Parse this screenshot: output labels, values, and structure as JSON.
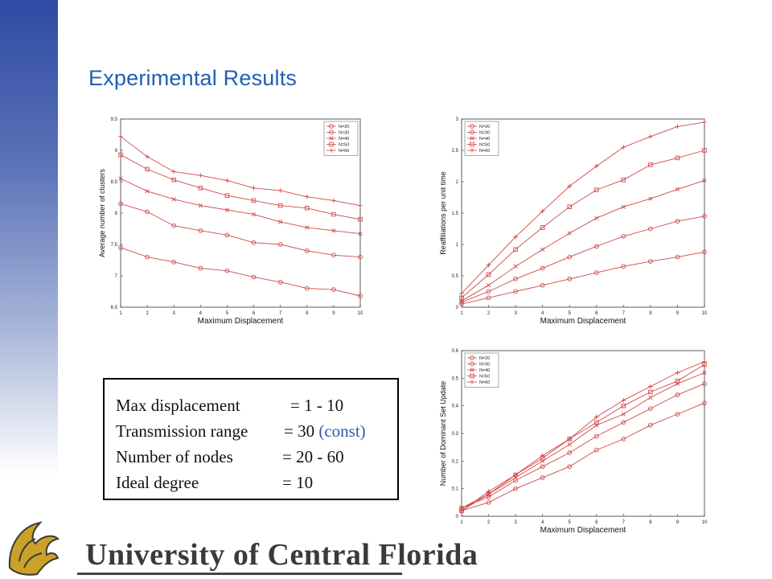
{
  "slide": {
    "title": "Experimental Results"
  },
  "params": [
    {
      "key": "Max displacement",
      "value": "= 1 - 10",
      "note": ""
    },
    {
      "key": "Transmission range",
      "value": "= 30",
      "note": "(const)"
    },
    {
      "key": "Number of nodes",
      "value": "= 20 - 60",
      "note": ""
    },
    {
      "key": "Ideal degree",
      "value": "= 10",
      "note": ""
    }
  ],
  "logo": {
    "text": "University of Central Florida"
  },
  "colors": {
    "series": "#d04848",
    "title": "#1f5fb3"
  },
  "chart_data": [
    {
      "type": "line",
      "xlabel": "Maximum Displacement",
      "ylabel": "Average number of clusters",
      "x": [
        1,
        2,
        3,
        4,
        5,
        6,
        7,
        8,
        9,
        10
      ],
      "xlim": [
        1,
        10
      ],
      "ylim": [
        6.5,
        9.5
      ],
      "yticks": [
        6.5,
        7,
        7.5,
        8,
        8.5,
        9,
        9.5
      ],
      "xticks": [
        1,
        2,
        3,
        4,
        5,
        6,
        7,
        8,
        9,
        10
      ],
      "legend": "top-right",
      "grid": false,
      "series": [
        {
          "name": "N=20",
          "marker": "circle",
          "values": [
            7.45,
            7.3,
            7.22,
            7.12,
            7.08,
            6.98,
            6.9,
            6.8,
            6.78,
            6.68
          ]
        },
        {
          "name": "N=30",
          "marker": "circle",
          "values": [
            8.15,
            8.02,
            7.8,
            7.72,
            7.65,
            7.53,
            7.5,
            7.4,
            7.33,
            7.3
          ]
        },
        {
          "name": "N=40",
          "marker": "x",
          "values": [
            8.55,
            8.35,
            8.22,
            8.12,
            8.05,
            7.98,
            7.86,
            7.77,
            7.72,
            7.67
          ]
        },
        {
          "name": "N=50",
          "marker": "square",
          "values": [
            8.93,
            8.7,
            8.53,
            8.4,
            8.28,
            8.2,
            8.12,
            8.08,
            7.98,
            7.9
          ]
        },
        {
          "name": "N=60",
          "marker": "plus",
          "values": [
            9.22,
            8.9,
            8.66,
            8.6,
            8.52,
            8.4,
            8.36,
            8.26,
            8.2,
            8.12
          ]
        }
      ]
    },
    {
      "type": "line",
      "xlabel": "Maximum Displacement",
      "ylabel": "Reaffiliations per unit time",
      "x": [
        1,
        2,
        3,
        4,
        5,
        6,
        7,
        8,
        9,
        10
      ],
      "xlim": [
        1,
        10
      ],
      "ylim": [
        0,
        3
      ],
      "yticks": [
        0,
        0.5,
        1,
        1.5,
        2,
        2.5,
        3
      ],
      "xticks": [
        1,
        2,
        3,
        4,
        5,
        6,
        7,
        8,
        9,
        10
      ],
      "legend": "top-left",
      "grid": false,
      "series": [
        {
          "name": "N=20",
          "marker": "circle",
          "values": [
            0.05,
            0.15,
            0.25,
            0.35,
            0.45,
            0.55,
            0.65,
            0.73,
            0.8,
            0.88
          ]
        },
        {
          "name": "N=30",
          "marker": "circle",
          "values": [
            0.08,
            0.25,
            0.45,
            0.62,
            0.8,
            0.97,
            1.13,
            1.25,
            1.37,
            1.45
          ]
        },
        {
          "name": "N=40",
          "marker": "x",
          "values": [
            0.1,
            0.35,
            0.65,
            0.92,
            1.18,
            1.42,
            1.6,
            1.73,
            1.88,
            2.02
          ]
        },
        {
          "name": "N=50",
          "marker": "square",
          "values": [
            0.15,
            0.52,
            0.92,
            1.27,
            1.6,
            1.87,
            2.03,
            2.27,
            2.38,
            2.5
          ]
        },
        {
          "name": "N=60",
          "marker": "plus",
          "values": [
            0.22,
            0.67,
            1.12,
            1.53,
            1.93,
            2.25,
            2.55,
            2.72,
            2.88,
            2.95
          ]
        }
      ]
    },
    {
      "type": "line",
      "xlabel": "Maximum Displacement",
      "ylabel": "Number of Dominant Set Update",
      "x": [
        1,
        2,
        3,
        4,
        5,
        6,
        7,
        8,
        9,
        10
      ],
      "xlim": [
        1,
        10
      ],
      "ylim": [
        0,
        0.6
      ],
      "yticks": [
        0,
        0.1,
        0.2,
        0.3,
        0.4,
        0.5,
        0.6
      ],
      "xticks": [
        1,
        2,
        3,
        4,
        5,
        6,
        7,
        8,
        9,
        10
      ],
      "legend": "top-left",
      "grid": false,
      "series": [
        {
          "name": "N=20",
          "marker": "circle",
          "values": [
            0.02,
            0.05,
            0.1,
            0.14,
            0.18,
            0.24,
            0.28,
            0.33,
            0.37,
            0.41
          ]
        },
        {
          "name": "N=30",
          "marker": "circle",
          "values": [
            0.03,
            0.07,
            0.13,
            0.18,
            0.23,
            0.29,
            0.34,
            0.39,
            0.44,
            0.48
          ]
        },
        {
          "name": "N=40",
          "marker": "x",
          "values": [
            0.03,
            0.08,
            0.14,
            0.2,
            0.26,
            0.33,
            0.37,
            0.43,
            0.48,
            0.52
          ]
        },
        {
          "name": "N=50",
          "marker": "square",
          "values": [
            0.02,
            0.08,
            0.15,
            0.21,
            0.28,
            0.34,
            0.4,
            0.45,
            0.49,
            0.55
          ]
        },
        {
          "name": "N=60",
          "marker": "plus",
          "values": [
            0.02,
            0.09,
            0.15,
            0.22,
            0.28,
            0.36,
            0.42,
            0.47,
            0.52,
            0.56
          ]
        }
      ]
    }
  ]
}
